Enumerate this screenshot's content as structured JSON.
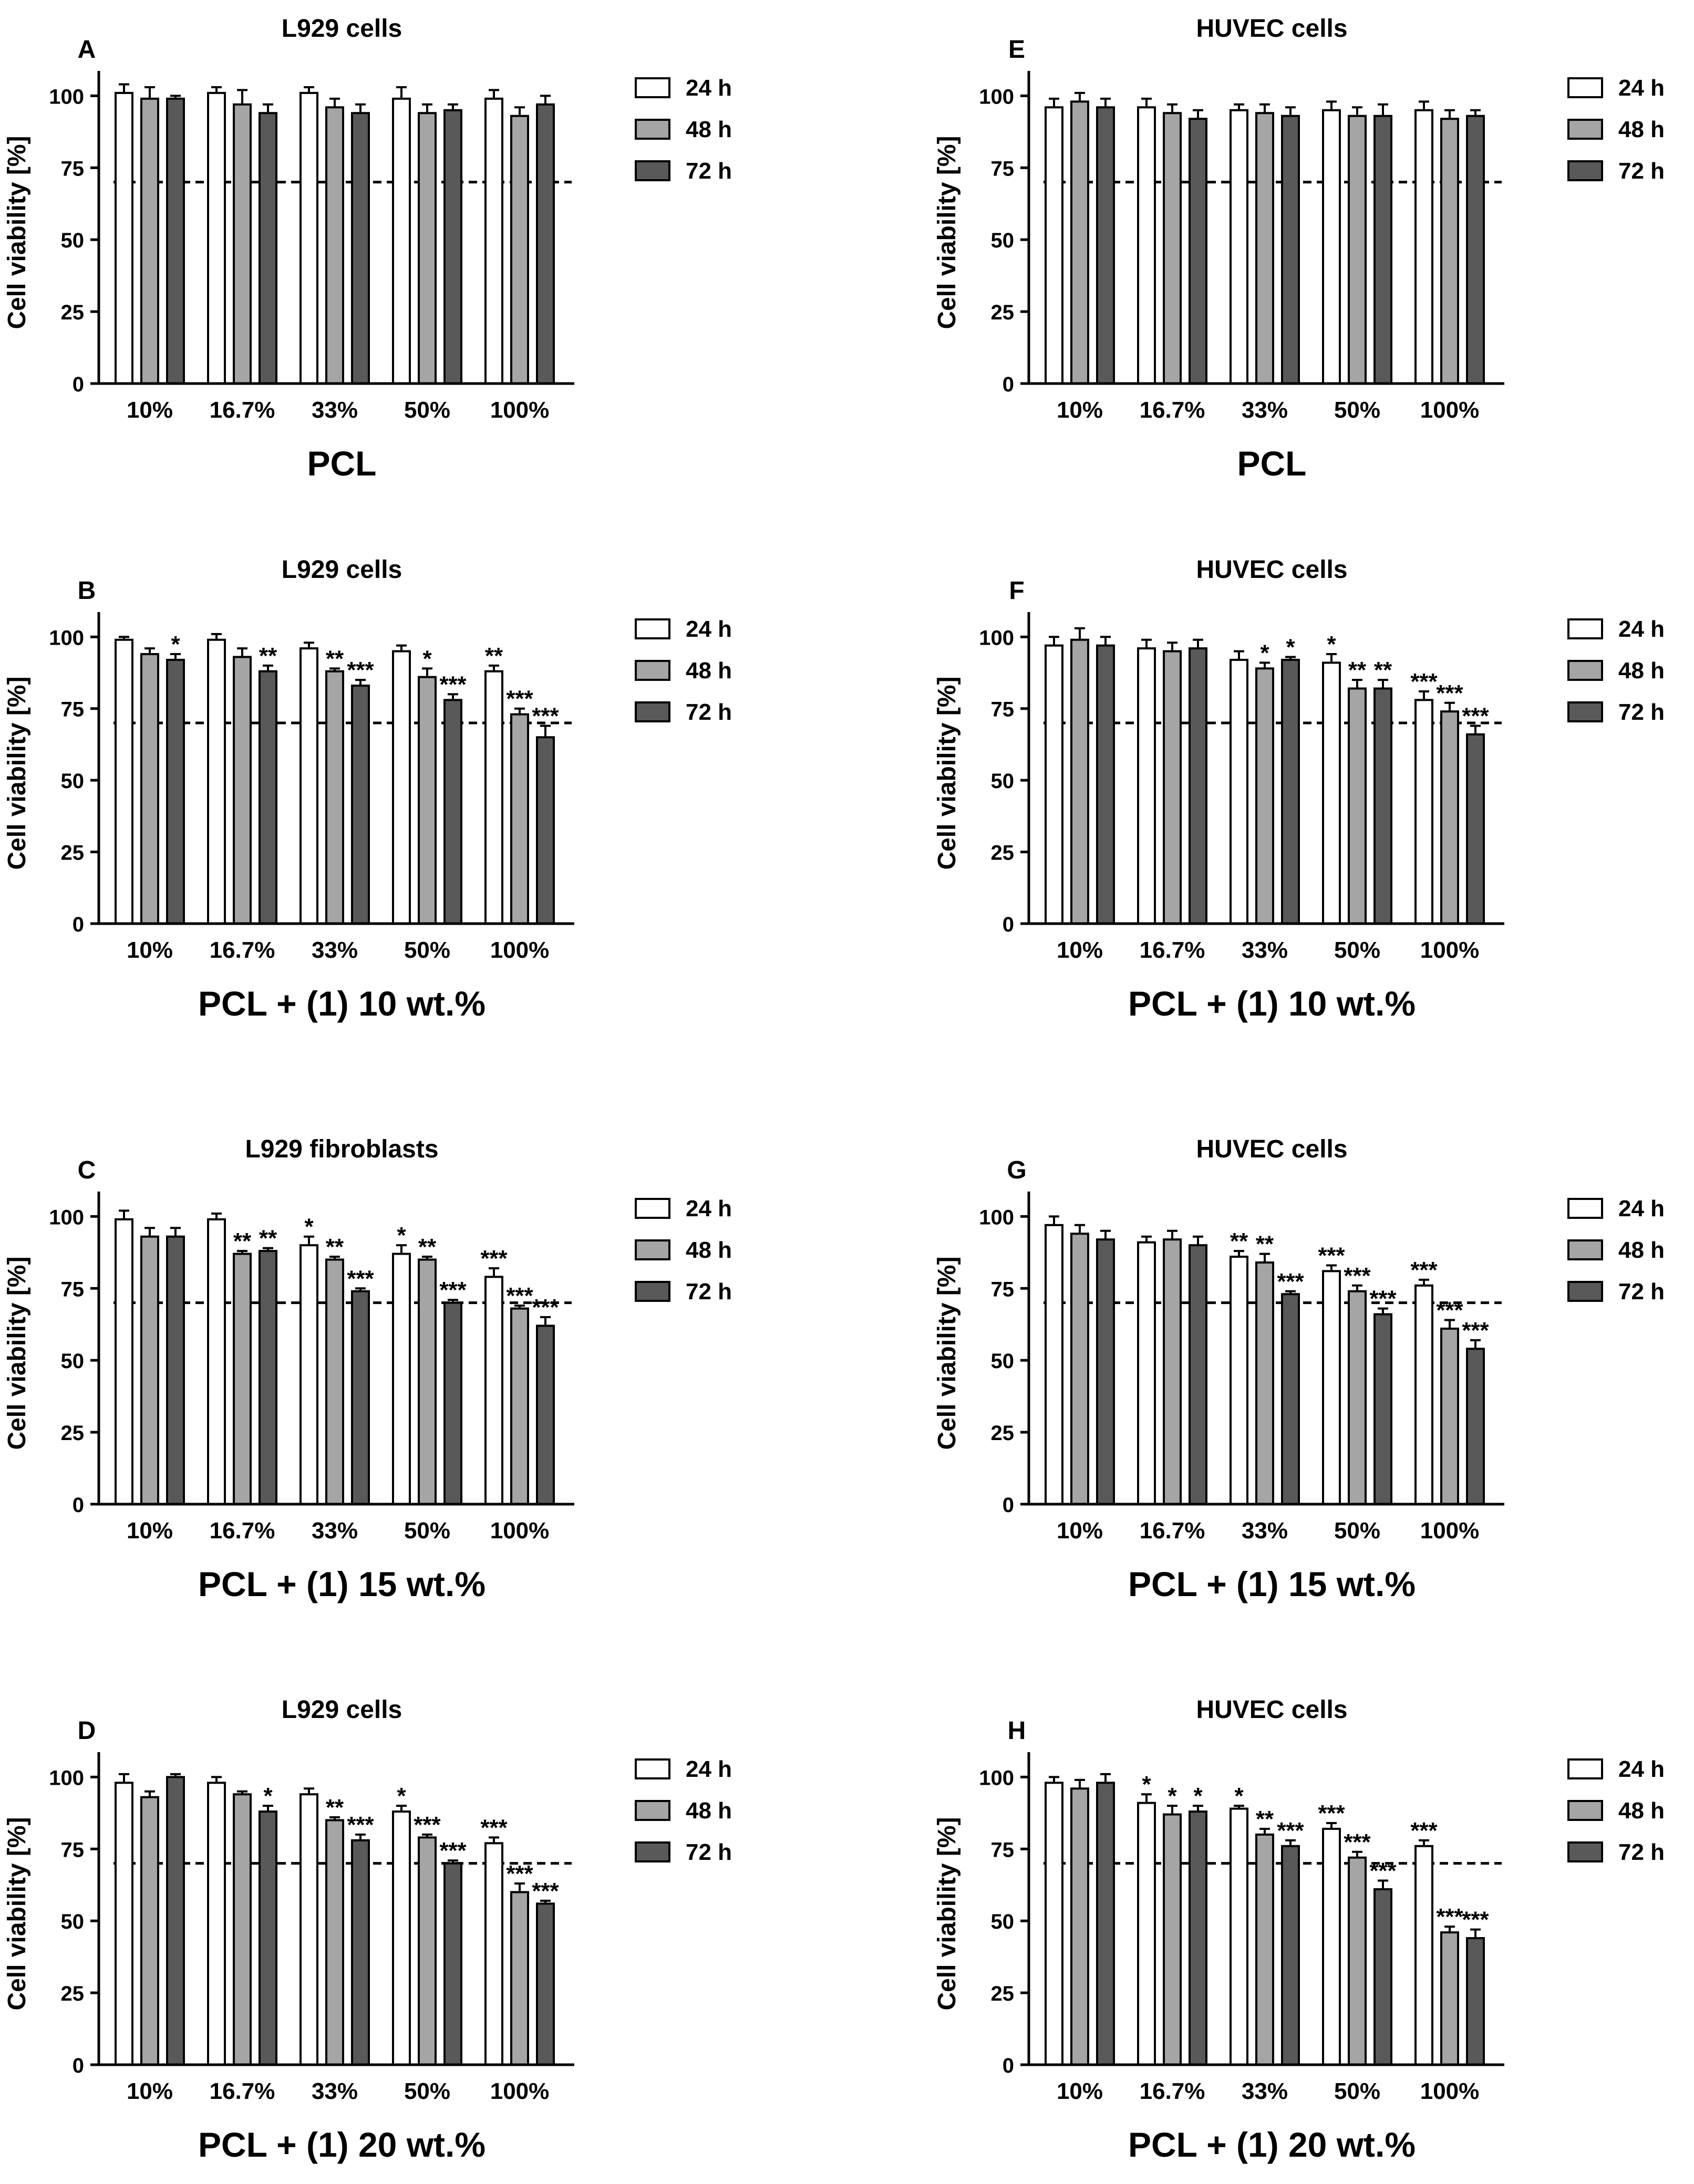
{
  "figure": {
    "y_axis_label": "Cell viability [%]"
  },
  "legend_entries": [
    "24 h",
    "48 h",
    "72 h"
  ],
  "colors": {
    "24 h": "#ffffff",
    "48 h": "#a5a5a5",
    "72 h": "#595959",
    "axis": "#000000"
  },
  "chart_data": [
    {
      "panel": "A",
      "title": "L929 cells",
      "xlabel": "PCL",
      "ylabel": "Cell viability [%]",
      "type": "bar",
      "categories": [
        "10%",
        "16.7%",
        "33%",
        "50%",
        "100%"
      ],
      "ylim": [
        0,
        105
      ],
      "yticks": [
        0,
        25,
        50,
        75,
        100
      ],
      "threshold": 70,
      "legend": "right",
      "series": [
        {
          "name": "24 h",
          "values": [
            101,
            101,
            101,
            99,
            99
          ],
          "errors": [
            3,
            2,
            2,
            4,
            3
          ],
          "sig": [
            "",
            "",
            "",
            "",
            ""
          ]
        },
        {
          "name": "48 h",
          "values": [
            99,
            97,
            96,
            94,
            93
          ],
          "errors": [
            4,
            5,
            3,
            3,
            3
          ],
          "sig": [
            "",
            "",
            "",
            "",
            ""
          ]
        },
        {
          "name": "72 h",
          "values": [
            99,
            94,
            94,
            95,
            97
          ],
          "errors": [
            1,
            3,
            3,
            2,
            3
          ],
          "sig": [
            "",
            "",
            "",
            "",
            ""
          ]
        }
      ]
    },
    {
      "panel": "B",
      "title": "L929 cells",
      "xlabel": "PCL + (1) 10 wt.%",
      "ylabel": "Cell viability [%]",
      "type": "bar",
      "categories": [
        "10%",
        "16.7%",
        "33%",
        "50%",
        "100%"
      ],
      "ylim": [
        0,
        105
      ],
      "yticks": [
        0,
        25,
        50,
        75,
        100
      ],
      "threshold": 70,
      "legend": "right",
      "series": [
        {
          "name": "24 h",
          "values": [
            99,
            99,
            96,
            95,
            88
          ],
          "errors": [
            1,
            2,
            2,
            2,
            2
          ],
          "sig": [
            "",
            "",
            "",
            "",
            "**"
          ]
        },
        {
          "name": "48 h",
          "values": [
            94,
            93,
            88,
            86,
            73
          ],
          "errors": [
            2,
            3,
            1,
            3,
            2
          ],
          "sig": [
            "",
            "",
            "**",
            "*",
            "***"
          ]
        },
        {
          "name": "72 h",
          "values": [
            92,
            88,
            83,
            78,
            65
          ],
          "errors": [
            2,
            2,
            2,
            2,
            4
          ],
          "sig": [
            "*",
            "**",
            "***",
            "***",
            "***"
          ]
        }
      ]
    },
    {
      "panel": "C",
      "title": "L929 fibroblasts",
      "xlabel": "PCL + (1) 15 wt.%",
      "ylabel": "Cell viability [%]",
      "type": "bar",
      "categories": [
        "10%",
        "16.7%",
        "33%",
        "50%",
        "100%"
      ],
      "ylim": [
        0,
        105
      ],
      "yticks": [
        0,
        25,
        50,
        75,
        100
      ],
      "threshold": 70,
      "legend": "right",
      "series": [
        {
          "name": "24 h",
          "values": [
            99,
            99,
            90,
            87,
            79
          ],
          "errors": [
            3,
            2,
            3,
            3,
            3
          ],
          "sig": [
            "",
            "",
            "*",
            "*",
            "***"
          ]
        },
        {
          "name": "48 h",
          "values": [
            93,
            87,
            85,
            85,
            68
          ],
          "errors": [
            3,
            1,
            1,
            1,
            1
          ],
          "sig": [
            "",
            "**",
            "**",
            "**",
            "***"
          ]
        },
        {
          "name": "72 h",
          "values": [
            93,
            88,
            74,
            70,
            62
          ],
          "errors": [
            3,
            1,
            1,
            1,
            3
          ],
          "sig": [
            "",
            "**",
            "***",
            "***",
            "***"
          ]
        }
      ]
    },
    {
      "panel": "D",
      "title": "L929 cells",
      "xlabel": "PCL + (1) 20 wt.%",
      "ylabel": "Cell viability [%]",
      "type": "bar",
      "categories": [
        "10%",
        "16.7%",
        "33%",
        "50%",
        "100%"
      ],
      "ylim": [
        0,
        105
      ],
      "yticks": [
        0,
        25,
        50,
        75,
        100
      ],
      "threshold": 70,
      "legend": "right",
      "series": [
        {
          "name": "24 h",
          "values": [
            98,
            98,
            94,
            88,
            77
          ],
          "errors": [
            3,
            2,
            2,
            2,
            2
          ],
          "sig": [
            "",
            "",
            "",
            "*",
            "***"
          ]
        },
        {
          "name": "48 h",
          "values": [
            93,
            94,
            85,
            79,
            60
          ],
          "errors": [
            2,
            1,
            1,
            1,
            3
          ],
          "sig": [
            "",
            "",
            "**",
            "***",
            "***"
          ]
        },
        {
          "name": "72 h",
          "values": [
            100,
            88,
            78,
            70,
            56
          ],
          "errors": [
            1,
            2,
            2,
            1,
            1
          ],
          "sig": [
            "",
            "*",
            "***",
            "***",
            "***"
          ]
        }
      ]
    },
    {
      "panel": "E",
      "title": "HUVEC cells",
      "xlabel": "PCL",
      "ylabel": "Cell viability [%]",
      "type": "bar",
      "categories": [
        "10%",
        "16.7%",
        "33%",
        "50%",
        "100%"
      ],
      "ylim": [
        0,
        105
      ],
      "yticks": [
        0,
        25,
        50,
        75,
        100
      ],
      "threshold": 70,
      "legend": "right",
      "series": [
        {
          "name": "24 h",
          "values": [
            96,
            96,
            95,
            95,
            95
          ],
          "errors": [
            3,
            3,
            2,
            3,
            3
          ],
          "sig": [
            "",
            "",
            "",
            "",
            ""
          ]
        },
        {
          "name": "48 h",
          "values": [
            98,
            94,
            94,
            93,
            92
          ],
          "errors": [
            3,
            3,
            3,
            3,
            3
          ],
          "sig": [
            "",
            "",
            "",
            "",
            ""
          ]
        },
        {
          "name": "72 h",
          "values": [
            96,
            92,
            93,
            93,
            93
          ],
          "errors": [
            3,
            3,
            3,
            4,
            2
          ],
          "sig": [
            "",
            "",
            "",
            "",
            ""
          ]
        }
      ]
    },
    {
      "panel": "F",
      "title": "HUVEC cells",
      "xlabel": "PCL + (1) 10 wt.%",
      "ylabel": "Cell viability [%]",
      "type": "bar",
      "categories": [
        "10%",
        "16.7%",
        "33%",
        "50%",
        "100%"
      ],
      "ylim": [
        0,
        105
      ],
      "yticks": [
        0,
        25,
        50,
        75,
        100
      ],
      "threshold": 70,
      "legend": "right",
      "series": [
        {
          "name": "24 h",
          "values": [
            97,
            96,
            92,
            91,
            78
          ],
          "errors": [
            3,
            3,
            3,
            3,
            3
          ],
          "sig": [
            "",
            "",
            "",
            "*",
            "***"
          ]
        },
        {
          "name": "48 h",
          "values": [
            99,
            95,
            89,
            82,
            74
          ],
          "errors": [
            4,
            3,
            2,
            3,
            3
          ],
          "sig": [
            "",
            "",
            "*",
            "**",
            "***"
          ]
        },
        {
          "name": "72 h",
          "values": [
            97,
            96,
            92,
            82,
            66
          ],
          "errors": [
            3,
            3,
            1,
            3,
            3
          ],
          "sig": [
            "",
            "",
            "*",
            "**",
            "***"
          ]
        }
      ]
    },
    {
      "panel": "G",
      "title": "HUVEC cells",
      "xlabel": "PCL + (1) 15 wt.%",
      "ylabel": "Cell viability [%]",
      "type": "bar",
      "categories": [
        "10%",
        "16.7%",
        "33%",
        "50%",
        "100%"
      ],
      "ylim": [
        0,
        105
      ],
      "yticks": [
        0,
        25,
        50,
        75,
        100
      ],
      "threshold": 70,
      "legend": "right",
      "series": [
        {
          "name": "24 h",
          "values": [
            97,
            91,
            86,
            81,
            76
          ],
          "errors": [
            3,
            2,
            2,
            2,
            2
          ],
          "sig": [
            "",
            "",
            "**",
            "***",
            "***"
          ]
        },
        {
          "name": "48 h",
          "values": [
            94,
            92,
            84,
            74,
            61
          ],
          "errors": [
            3,
            3,
            3,
            2,
            3
          ],
          "sig": [
            "",
            "",
            "**",
            "***",
            "***"
          ]
        },
        {
          "name": "72 h",
          "values": [
            92,
            90,
            73,
            66,
            54
          ],
          "errors": [
            3,
            3,
            1,
            2,
            3
          ],
          "sig": [
            "",
            "",
            "***",
            "***",
            "***"
          ]
        }
      ]
    },
    {
      "panel": "H",
      "title": "HUVEC cells",
      "xlabel": "PCL + (1) 20 wt.%",
      "ylabel": "Cell viability [%]",
      "type": "bar",
      "categories": [
        "10%",
        "16.7%",
        "33%",
        "50%",
        "100%"
      ],
      "ylim": [
        0,
        105
      ],
      "yticks": [
        0,
        25,
        50,
        75,
        100
      ],
      "threshold": 70,
      "legend": "right",
      "series": [
        {
          "name": "24 h",
          "values": [
            98,
            91,
            89,
            82,
            76
          ],
          "errors": [
            2,
            3,
            1,
            2,
            2
          ],
          "sig": [
            "",
            "*",
            "*",
            "***",
            "***"
          ]
        },
        {
          "name": "48 h",
          "values": [
            96,
            87,
            80,
            72,
            46
          ],
          "errors": [
            3,
            3,
            2,
            2,
            2
          ],
          "sig": [
            "",
            "*",
            "**",
            "***",
            "***"
          ]
        },
        {
          "name": "72 h",
          "values": [
            98,
            88,
            76,
            61,
            44
          ],
          "errors": [
            3,
            2,
            2,
            3,
            3
          ],
          "sig": [
            "",
            "*",
            "***",
            "***",
            "***"
          ]
        }
      ]
    }
  ]
}
